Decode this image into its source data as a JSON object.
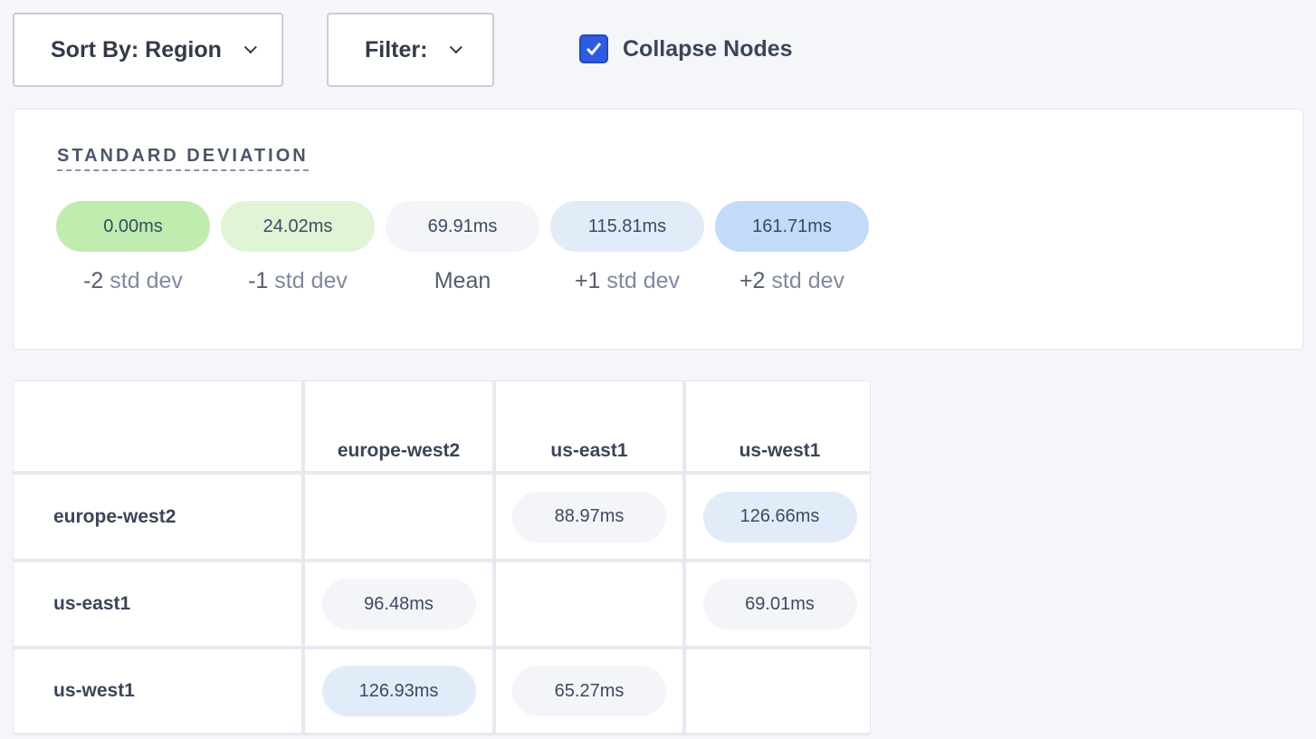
{
  "toolbar": {
    "sort_label": "Sort By: Region",
    "filter_label": "Filter:",
    "collapse_nodes_label": "Collapse Nodes",
    "collapse_nodes_checked": true
  },
  "legend": {
    "title": "STANDARD DEVIATION",
    "items": [
      {
        "value": "0.00ms",
        "num": "-2",
        "text": " std dev",
        "color": "#c0ecb0"
      },
      {
        "value": "24.02ms",
        "num": "-1",
        "text": " std dev",
        "color": "#dff5d6"
      },
      {
        "value": "69.91ms",
        "num": "Mean",
        "text": "",
        "color": "#f3f5f9"
      },
      {
        "value": "115.81ms",
        "num": "+1",
        "text": " std dev",
        "color": "#e2ecf9"
      },
      {
        "value": "161.71ms",
        "num": "+2",
        "text": " std dev",
        "color": "#c2dbf9"
      }
    ]
  },
  "matrix": {
    "columns": [
      "europe-west2",
      "us-east1",
      "us-west1"
    ],
    "rows": [
      {
        "label": "europe-west2",
        "cells": [
          null,
          {
            "value": "88.97ms",
            "color": "#f3f5f9"
          },
          {
            "value": "126.66ms",
            "color": "#e2ecf9"
          }
        ]
      },
      {
        "label": "us-east1",
        "cells": [
          {
            "value": "96.48ms",
            "color": "#f3f5f9"
          },
          null,
          {
            "value": "69.01ms",
            "color": "#f3f5f9"
          }
        ]
      },
      {
        "label": "us-west1",
        "cells": [
          {
            "value": "126.93ms",
            "color": "#e2ecf9"
          },
          {
            "value": "65.27ms",
            "color": "#f3f5f9"
          },
          null
        ]
      }
    ]
  }
}
